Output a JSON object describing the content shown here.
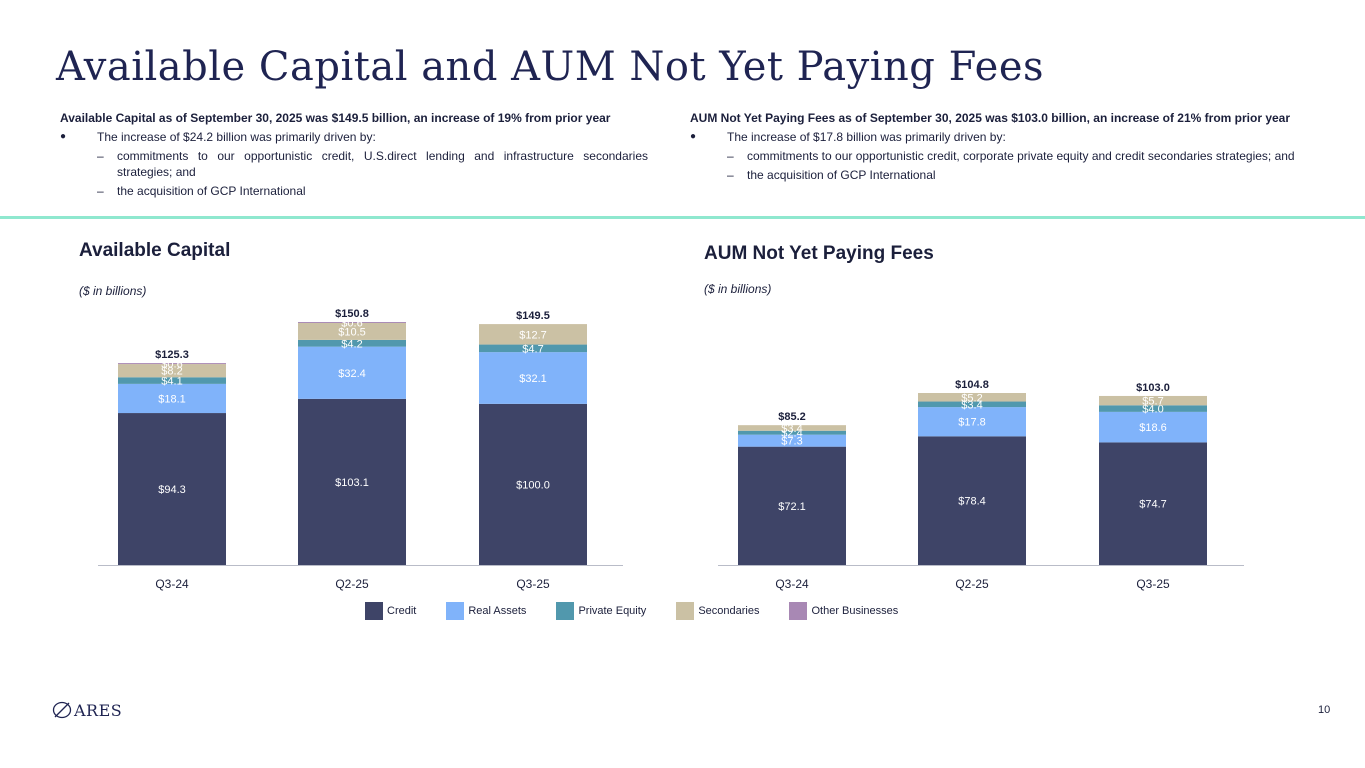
{
  "page": {
    "title": "Available Capital and AUM Not Yet Paying Fees",
    "page_number": "10",
    "logo_text": "ARES"
  },
  "summary_left": {
    "headline": "Available Capital as of September 30, 2025 was $149.5 billion, an increase of 19% from prior year",
    "bullet": "The increase of $24.2 billion was primarily driven by:",
    "sub1": "commitments to our opportunistic credit, U.S.direct lending and infrastructure secondaries strategies; and",
    "sub2": "the acquisition of GCP International"
  },
  "summary_right": {
    "headline": "AUM Not Yet Paying Fees as of September 30, 2025 was $103.0 billion, an increase of 21% from prior year",
    "bullet": "The increase of $17.8 billion was primarily driven by:",
    "sub1": "commitments to our opportunistic credit, corporate private equity and credit secondaries strategies; and",
    "sub2": "the acquisition of GCP International"
  },
  "colors": {
    "Credit": "#3e4467",
    "Real Assets": "#80b3fa",
    "Private Equity": "#5198ad",
    "Secondaries": "#cbc1a4",
    "Other Businesses": "#a888b4"
  },
  "legend": [
    "Credit",
    "Real Assets",
    "Private Equity",
    "Secondaries",
    "Other Businesses"
  ],
  "chart_data": [
    {
      "type": "bar",
      "stacked": true,
      "title": "Available Capital",
      "unit": "($ in billions)",
      "categories": [
        "Q3-24",
        "Q2-25",
        "Q3-25"
      ],
      "totals": [
        "$125.3",
        "$150.8",
        "$149.5"
      ],
      "series": [
        {
          "name": "Credit",
          "values": [
            94.3,
            103.1,
            100.0
          ],
          "labels": [
            "$94.3",
            "$103.1",
            "$100.0"
          ]
        },
        {
          "name": "Real Assets",
          "values": [
            18.1,
            32.4,
            32.1
          ],
          "labels": [
            "$18.1",
            "$32.4",
            "$32.1"
          ]
        },
        {
          "name": "Private Equity",
          "values": [
            4.1,
            4.2,
            4.7
          ],
          "labels": [
            "$4.1",
            "$4.2",
            "$4.7"
          ]
        },
        {
          "name": "Secondaries",
          "values": [
            8.2,
            10.5,
            12.7
          ],
          "labels": [
            "$8.2",
            "$10.5",
            "$12.7"
          ]
        },
        {
          "name": "Other Businesses",
          "values": [
            0.6,
            0.6,
            0
          ],
          "labels": [
            "$0.6",
            "$0.6",
            ""
          ]
        }
      ],
      "ylim": [
        0,
        150.8
      ]
    },
    {
      "type": "bar",
      "stacked": true,
      "title": "AUM Not Yet Paying Fees",
      "unit": "($ in billions)",
      "categories": [
        "Q3-24",
        "Q2-25",
        "Q3-25"
      ],
      "totals": [
        "$85.2",
        "$104.8",
        "$103.0"
      ],
      "series": [
        {
          "name": "Credit",
          "values": [
            72.1,
            78.4,
            74.7
          ],
          "labels": [
            "$72.1",
            "$78.4",
            "$74.7"
          ]
        },
        {
          "name": "Real Assets",
          "values": [
            7.3,
            17.8,
            18.6
          ],
          "labels": [
            "$7.3",
            "$17.8",
            "$18.6"
          ]
        },
        {
          "name": "Private Equity",
          "values": [
            2.4,
            3.4,
            4.0
          ],
          "labels": [
            "$2.4",
            "$3.4",
            "$4.0"
          ]
        },
        {
          "name": "Secondaries",
          "values": [
            3.4,
            5.2,
            5.7
          ],
          "labels": [
            "$3.4",
            "$5.2",
            "$5.7"
          ]
        }
      ],
      "ylim": [
        0,
        104.8
      ]
    }
  ]
}
